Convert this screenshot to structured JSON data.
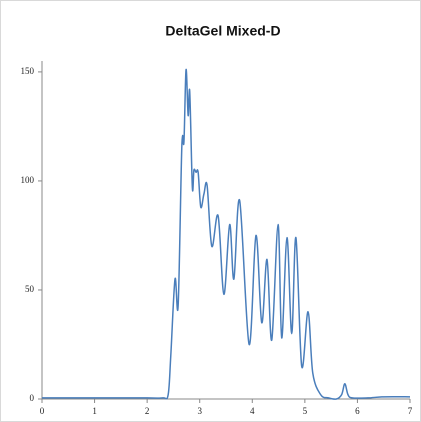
{
  "chart_data": {
    "type": "line",
    "title": "DeltaGel Mixed-D",
    "series": [
      {
        "color": "#4a7ebb",
        "x": [
          0,
          1,
          2,
          2.3,
          2.4,
          2.45,
          2.53,
          2.59,
          2.66,
          2.7,
          2.74,
          2.78,
          2.81,
          2.86,
          2.89,
          2.93,
          2.97,
          3.02,
          3.08,
          3.14,
          3.23,
          3.35,
          3.46,
          3.57,
          3.65,
          3.76,
          3.94,
          4.07,
          4.18,
          4.28,
          4.37,
          4.49,
          4.56,
          4.66,
          4.75,
          4.83,
          4.94,
          5.06,
          5.15,
          5.3,
          5.45,
          5.6,
          5.7,
          5.76,
          5.82,
          5.9,
          6.2,
          6.5,
          7
        ],
        "values": [
          0.5,
          0.5,
          0.5,
          0.5,
          2,
          20,
          55,
          43,
          116,
          118,
          151,
          130,
          141,
          97,
          105,
          104,
          104,
          88,
          94,
          98,
          70,
          84,
          48,
          80,
          55,
          91,
          25,
          75,
          35,
          64,
          27,
          80,
          28,
          74,
          30,
          74,
          15,
          40,
          12,
          2,
          0.5,
          0,
          2,
          7,
          2,
          0.5,
          0.5,
          1,
          1
        ]
      }
    ],
    "xlim": [
      0,
      7
    ],
    "xticks": [
      0,
      1,
      2,
      3,
      4,
      5,
      6,
      7
    ],
    "ylim": [
      0,
      155
    ],
    "yticks": [
      0,
      50,
      100,
      150
    ]
  }
}
